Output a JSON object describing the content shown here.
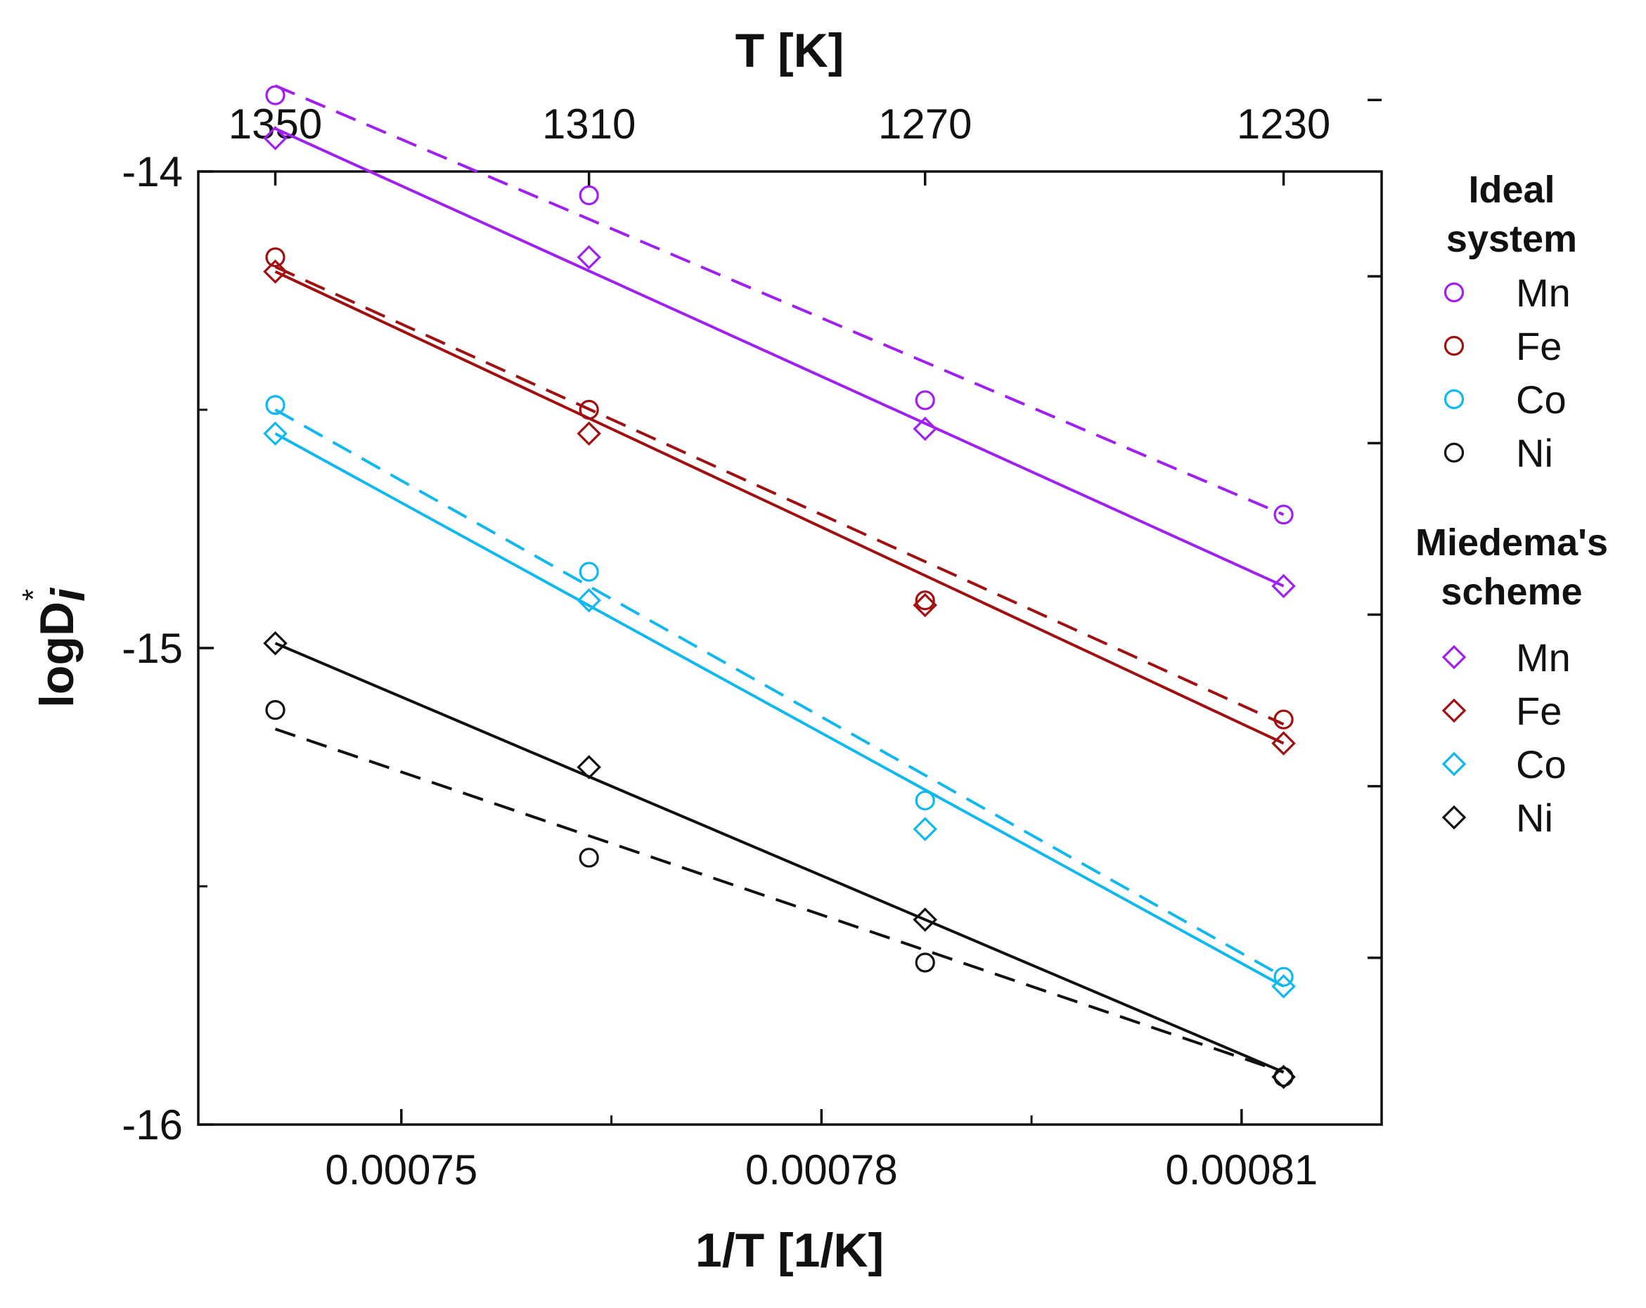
{
  "chart_data": {
    "type": "scatter",
    "title": "",
    "x": [
      0.000741,
      0.0007634,
      0.0007874,
      0.000813
    ],
    "x_top_temperatures": [
      1350,
      1310,
      1270,
      1230
    ],
    "xlabel": "1/T [1/K]",
    "x2label": "T [K]",
    "ylabel_main": "logD",
    "ylabel_sub": "i",
    "ylabel_sup": "*",
    "xlim": [
      0.0007355,
      0.00082
    ],
    "ylim": [
      -16,
      -14
    ],
    "x_ticks": [
      0.00075,
      0.00078,
      0.00081
    ],
    "x_tick_labels": [
      "0.00075",
      "0.00078",
      "0.00081"
    ],
    "x_minor_ticks": [
      0.000765,
      0.000795
    ],
    "y_ticks": [
      -16,
      -15,
      -14
    ],
    "y_tick_labels": [
      "-16",
      "-15",
      "-14"
    ],
    "y_minor_ticks": [
      -15.5,
      -14.5
    ],
    "top_tick_labels": [
      "1350",
      "1310",
      "1270",
      "1230"
    ],
    "right_ticks": [
      -13.85,
      -14.22,
      -14.57,
      -14.93,
      -15.29,
      -15.65
    ],
    "grid": false,
    "legend_position": "right",
    "legend_groups": [
      {
        "title_lines": [
          "Ideal",
          "system"
        ],
        "marker": "circle"
      },
      {
        "title_lines": [
          "Miedema's",
          "scheme"
        ],
        "marker": "diamond"
      }
    ],
    "series": [
      {
        "group": "Ideal system",
        "name": "Mn",
        "marker": "circle",
        "line": "dashed",
        "color": "#a020f0",
        "values": [
          -13.84,
          -14.05,
          -14.48,
          -14.72
        ],
        "fit": [
          -13.82,
          -14.72
        ]
      },
      {
        "group": "Ideal system",
        "name": "Fe",
        "marker": "circle",
        "line": "dashed",
        "color": "#a01010",
        "values": [
          -14.18,
          -14.5,
          -14.9,
          -15.15
        ],
        "fit": [
          -14.2,
          -15.16
        ]
      },
      {
        "group": "Ideal system",
        "name": "Co",
        "marker": "circle",
        "line": "dashed",
        "color": "#10b8f0",
        "values": [
          -14.49,
          -14.84,
          -15.32,
          -15.69
        ],
        "fit": [
          -14.5,
          -15.69
        ]
      },
      {
        "group": "Ideal system",
        "name": "Ni",
        "marker": "circle",
        "line": "dashed",
        "color": "#111111",
        "values": [
          -15.13,
          -15.44,
          -15.66,
          -15.9
        ],
        "fit": [
          -15.17,
          -15.89
        ]
      },
      {
        "group": "Miedema's scheme",
        "name": "Mn",
        "marker": "diamond",
        "line": "solid",
        "color": "#a020f0",
        "values": [
          -13.93,
          -14.18,
          -14.54,
          -14.87
        ],
        "fit": [
          -13.91,
          -14.87
        ]
      },
      {
        "group": "Miedema's scheme",
        "name": "Fe",
        "marker": "diamond",
        "line": "solid",
        "color": "#a01010",
        "values": [
          -14.21,
          -14.55,
          -14.91,
          -15.2
        ],
        "fit": [
          -14.21,
          -15.2
        ]
      },
      {
        "group": "Miedema's scheme",
        "name": "Co",
        "marker": "diamond",
        "line": "solid",
        "color": "#10b8f0",
        "values": [
          -14.55,
          -14.9,
          -15.38,
          -15.71
        ],
        "fit": [
          -14.55,
          -15.71
        ]
      },
      {
        "group": "Miedema's scheme",
        "name": "Ni",
        "marker": "diamond",
        "line": "solid",
        "color": "#111111",
        "values": [
          -14.99,
          -15.25,
          -15.57,
          -15.9
        ],
        "fit": [
          -14.99,
          -15.89
        ]
      }
    ]
  }
}
